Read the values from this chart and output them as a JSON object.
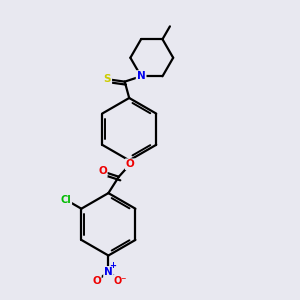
{
  "bg_color": "#e8e8f0",
  "bond_color": "#000000",
  "bond_width": 1.6,
  "atom_colors": {
    "S": "#cccc00",
    "N": "#0000ee",
    "O": "#ee0000",
    "Cl": "#00bb00",
    "C": "#000000"
  },
  "figsize": [
    3.0,
    3.0
  ],
  "dpi": 100
}
